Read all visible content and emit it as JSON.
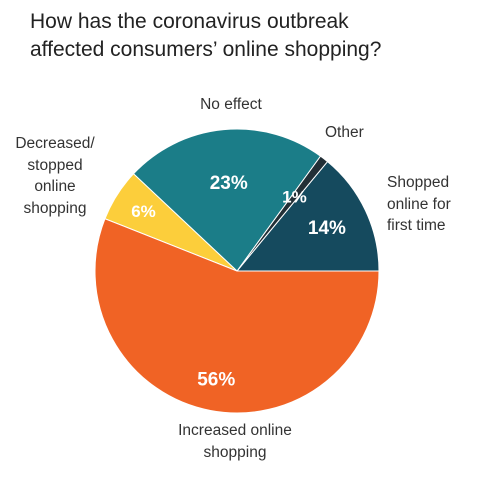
{
  "title_lines": [
    "How has the coronavirus outbreak",
    "affected consumers’ online shopping?"
  ],
  "chart_data": {
    "type": "pie",
    "title": "How has the coronavirus outbreak affected consumers’ online shopping?",
    "slices": [
      {
        "label": "Shopped online for first time",
        "label_lines": [
          "Shopped",
          "online for",
          "first time"
        ],
        "value": 14,
        "value_label": "14%",
        "color": "#154a5e"
      },
      {
        "label": "Other",
        "label_lines": [
          "Other"
        ],
        "value": 1,
        "value_label": "1%",
        "color": "#222f36"
      },
      {
        "label": "No effect",
        "label_lines": [
          "No effect"
        ],
        "value": 23,
        "value_label": "23%",
        "color": "#1b7d88"
      },
      {
        "label": "Decreased/stopped online shopping",
        "label_lines": [
          "Decreased/",
          "stopped",
          "online",
          "shopping"
        ],
        "value": 6,
        "value_label": "6%",
        "color": "#fcce3b"
      },
      {
        "label": "Increased online shopping",
        "label_lines": [
          "Increased online",
          "shopping"
        ],
        "value": 56,
        "value_label": "56%",
        "color": "#f06325"
      }
    ],
    "start_position": "3 o'clock",
    "direction": "counter-clockwise",
    "legend": "none",
    "value_label_color": "#ffffff"
  }
}
